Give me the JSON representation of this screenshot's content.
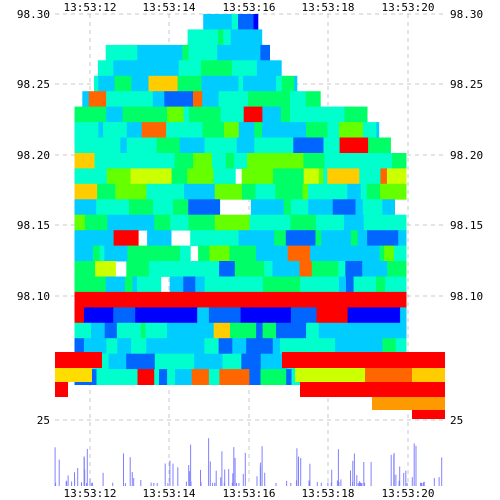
{
  "chart_data": [
    {
      "type": "heatmap",
      "title": "",
      "xlabel": "",
      "ylabel": "",
      "x_tick_labels": [
        "13:53:12",
        "13:53:14",
        "13:53:16",
        "13:53:18",
        "13:53:20"
      ],
      "y_tick_labels_left": [
        "98.30",
        "98.25",
        "98.20",
        "98.15",
        "98.10"
      ],
      "y_tick_labels_right": [
        "98.30",
        "98.25",
        "98.20",
        "98.15",
        "98.10"
      ],
      "ylim": [
        98.05,
        98.3
      ],
      "grid": true,
      "color_scale": [
        "#0000ff",
        "#0066ff",
        "#00ccff",
        "#00ffcc",
        "#00ff66",
        "#66ff00",
        "#ccff00",
        "#ffcc00",
        "#ff6600",
        "#ff0000"
      ],
      "bands": [
        {
          "price": 98.295,
          "time_from": 0.38,
          "time_to": 0.52,
          "intensity": 0.2
        },
        {
          "price": 98.285,
          "time_from": 0.34,
          "time_to": 0.53,
          "intensity": 0.3
        },
        {
          "price": 98.275,
          "time_from": 0.13,
          "time_to": 0.55,
          "intensity": 0.3
        },
        {
          "price": 98.265,
          "time_from": 0.11,
          "time_to": 0.58,
          "intensity": 0.25
        },
        {
          "price": 98.255,
          "time_from": 0.1,
          "time_to": 0.62,
          "intensity": 0.35
        },
        {
          "price": 98.245,
          "time_from": 0.07,
          "time_to": 0.68,
          "intensity": 0.3
        },
        {
          "price": 98.235,
          "time_from": 0.05,
          "time_to": 0.8,
          "intensity": 0.4
        },
        {
          "price": 98.225,
          "time_from": 0.05,
          "time_to": 0.83,
          "intensity": 0.35
        },
        {
          "price": 98.215,
          "time_from": 0.05,
          "time_to": 0.86,
          "intensity": 0.3
        },
        {
          "price": 98.205,
          "time_from": 0.05,
          "time_to": 0.9,
          "intensity": 0.45
        },
        {
          "price": 98.195,
          "time_from": 0.05,
          "time_to": 0.9,
          "intensity": 0.5
        },
        {
          "price": 98.185,
          "time_from": 0.05,
          "time_to": 0.9,
          "intensity": 0.4
        },
        {
          "price": 98.175,
          "time_from": 0.05,
          "time_to": 0.9,
          "intensity": 0.3
        },
        {
          "price": 98.165,
          "time_from": 0.05,
          "time_to": 0.9,
          "intensity": 0.35
        },
        {
          "price": 98.155,
          "time_from": 0.05,
          "time_to": 0.9,
          "intensity": 0.3
        },
        {
          "price": 98.145,
          "time_from": 0.05,
          "time_to": 0.9,
          "intensity": 0.35
        },
        {
          "price": 98.135,
          "time_from": 0.05,
          "time_to": 0.9,
          "intensity": 0.3
        },
        {
          "price": 98.125,
          "time_from": 0.05,
          "time_to": 0.9,
          "intensity": 0.3
        },
        {
          "price": 98.115,
          "time_from": 0.05,
          "time_to": 0.9,
          "intensity": 0.95
        },
        {
          "price": 98.105,
          "time_from": 0.05,
          "time_to": 0.9,
          "intensity": 0.05
        },
        {
          "price": 98.095,
          "time_from": 0.05,
          "time_to": 0.9,
          "intensity": 0.3
        },
        {
          "price": 98.085,
          "time_from": 0.05,
          "time_to": 0.9,
          "intensity": 0.25
        },
        {
          "price": 98.075,
          "time_from": 0.05,
          "time_to": 0.9,
          "intensity": 0.3
        },
        {
          "price": 98.065,
          "time_from": 0.05,
          "time_to": 0.9,
          "intensity": 0.25
        }
      ],
      "lower_panel": {
        "y_tick_label": "25",
        "x_tick_labels": [
          "13:53:12",
          "13:53:14",
          "13:53:16",
          "13:53:18",
          "13:53:20"
        ],
        "bar_color": "#8080ff"
      }
    }
  ]
}
